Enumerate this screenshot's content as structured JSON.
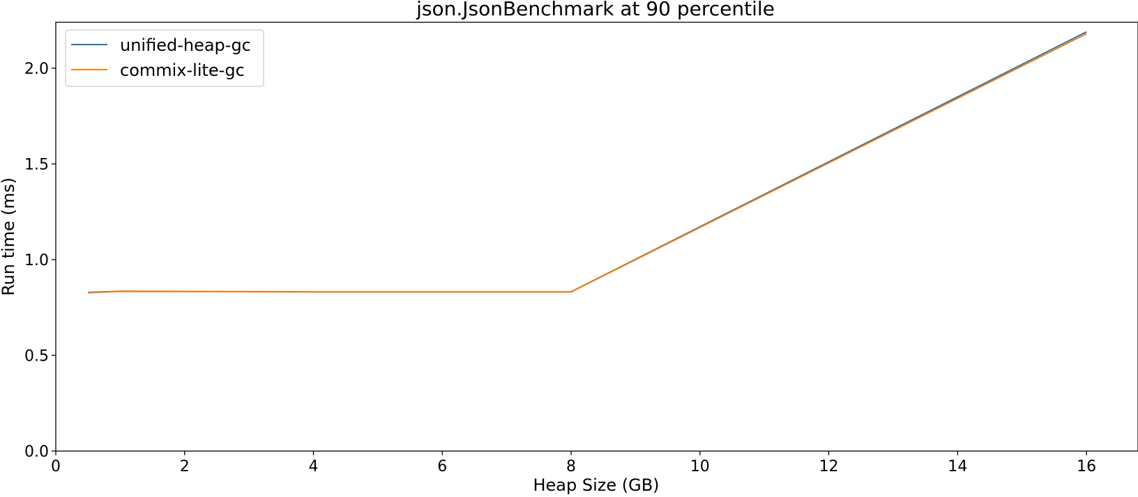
{
  "chart_data": {
    "type": "line",
    "title": "json.JsonBenchmark at 90 percentile",
    "xlabel": "Heap Size (GB)",
    "ylabel": "Run time (ms)",
    "xlim": [
      0,
      16.8
    ],
    "ylim": [
      0,
      2.24
    ],
    "xticks": [
      0,
      2,
      4,
      6,
      8,
      10,
      12,
      14,
      16
    ],
    "xtick_labels": [
      "0",
      "2",
      "4",
      "6",
      "8",
      "10",
      "12",
      "14",
      "16"
    ],
    "yticks": [
      0.0,
      0.5,
      1.0,
      1.5,
      2.0
    ],
    "ytick_labels": [
      "0.0",
      "0.5",
      "1.0",
      "1.5",
      "2.0"
    ],
    "grid": false,
    "legend_position": "upper-left",
    "x": [
      0.5,
      1,
      2,
      4,
      8,
      16
    ],
    "series": [
      {
        "name": "unified-heap-gc",
        "color": "#1f77b4",
        "values": [
          0.829,
          0.835,
          0.834,
          0.832,
          0.832,
          2.19
        ]
      },
      {
        "name": "commix-lite-gc",
        "color": "#ff7f0e",
        "values": [
          0.827,
          0.834,
          0.833,
          0.831,
          0.831,
          2.18
        ]
      }
    ]
  }
}
